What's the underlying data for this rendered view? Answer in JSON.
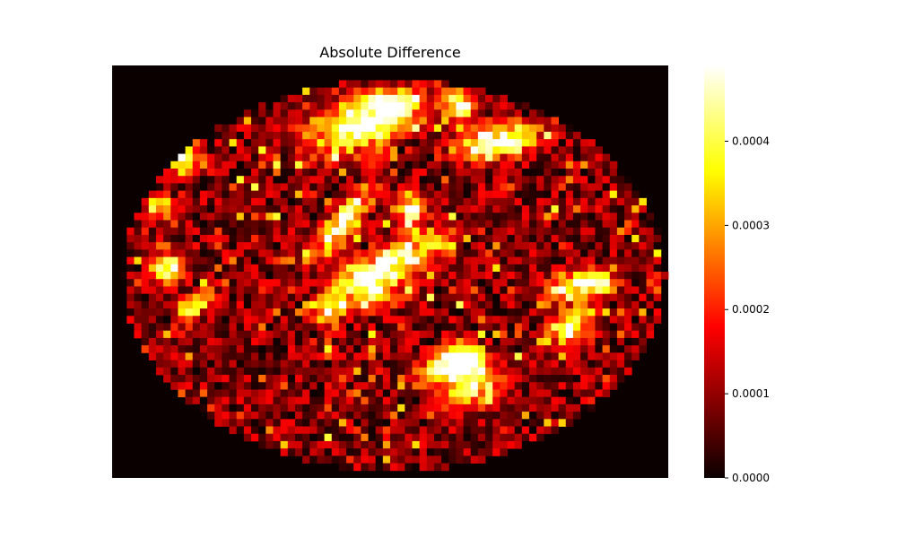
{
  "chart_data": {
    "type": "heatmap",
    "title": "Absolute Difference",
    "colormap": "hot",
    "vmin": 0,
    "vmax": 0.00049,
    "colorbar": {
      "ticks": [
        0,
        0.0001,
        0.0002,
        0.0003,
        0.0004
      ],
      "tick_labels": [
        "0.0000",
        "0.0001",
        "0.0002",
        "0.0003",
        "0.0004"
      ]
    },
    "grid": false,
    "background_value": 0,
    "shape": "brain slice (elliptical region of nonzero differences)",
    "bright_regions_value_range": [
      0.0004,
      0.00049
    ]
  }
}
